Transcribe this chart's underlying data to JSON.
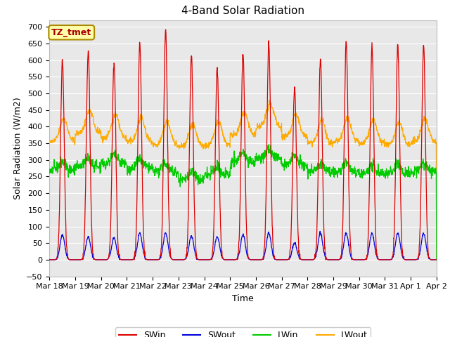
{
  "title": "4-Band Solar Radiation",
  "xlabel": "Time",
  "ylabel": "Solar Radiation (W/m2)",
  "ylim": [
    -50,
    720
  ],
  "xtick_labels": [
    "Mar 18",
    "Mar 19",
    "Mar 20",
    "Mar 21",
    "Mar 22",
    "Mar 23",
    "Mar 24",
    "Mar 25",
    "Mar 26",
    "Mar 27",
    "Mar 28",
    "Mar 29",
    "Mar 30",
    "Mar 31",
    "Apr 1",
    "Apr 2"
  ],
  "legend_labels": [
    "SWin",
    "SWout",
    "LWin",
    "LWout"
  ],
  "legend_colors": [
    "#dd0000",
    "#0000dd",
    "#00cc00",
    "#ffaa00"
  ],
  "swin_color": "#dd0000",
  "swout_color": "#0000dd",
  "lwin_color": "#00cc00",
  "lwout_color": "#ffaa00",
  "annotation_text": "TZ_tmet",
  "annotation_bg": "#ffffaa",
  "annotation_border": "#aa8800",
  "fig_bg_color": "#ffffff",
  "plot_bg_color": "#e8e8e8",
  "grid_color": "#ffffff",
  "title_fontsize": 11,
  "axis_label_fontsize": 9,
  "tick_fontsize": 8,
  "legend_fontsize": 9,
  "n_days": 15,
  "swin_peaks": [
    600,
    630,
    590,
    650,
    690,
    615,
    575,
    620,
    650,
    520,
    605,
    660,
    640,
    645,
    645
  ],
  "swout_peaks": [
    75,
    70,
    65,
    80,
    80,
    72,
    70,
    75,
    80,
    50,
    80,
    80,
    80,
    80,
    80
  ],
  "lwin_base": [
    270,
    280,
    290,
    275,
    265,
    240,
    255,
    295,
    305,
    285,
    265,
    265,
    260,
    260,
    265
  ],
  "lwout_base": [
    355,
    380,
    365,
    355,
    345,
    340,
    345,
    375,
    400,
    370,
    350,
    355,
    350,
    345,
    355
  ]
}
